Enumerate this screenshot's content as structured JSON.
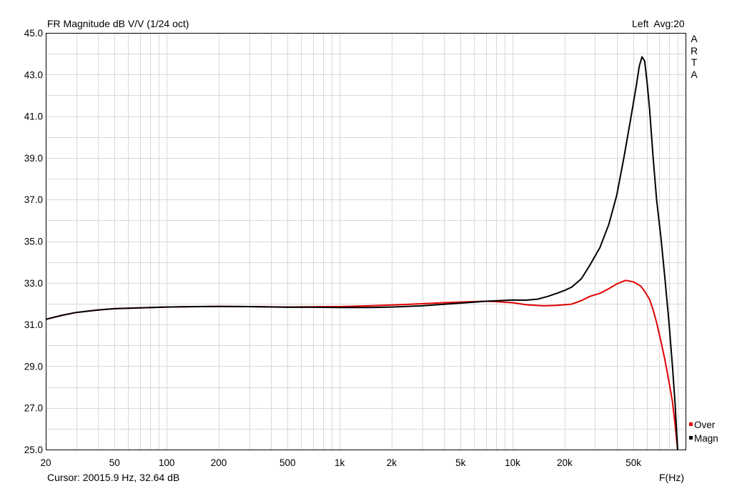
{
  "header": {
    "title": "FR Magnitude dB V/V (1/24 oct)",
    "right": "Left  Avg:20"
  },
  "brand": [
    "A",
    "R",
    "T",
    "A"
  ],
  "footer": {
    "cursor": "Cursor: 20015.9 Hz, 32.64 dB",
    "xunit": "F(Hz)"
  },
  "colors": {
    "grid": "#d8d8d8",
    "frame": "#000000",
    "magn": "#000000",
    "over": "#e00000"
  },
  "chart_data": {
    "type": "line",
    "title": "FR Magnitude dB V/V (1/24 oct)",
    "xscale": "log",
    "xlim": [
      20,
      100000
    ],
    "ylim": [
      25,
      45
    ],
    "xticks": [
      20,
      50,
      100,
      200,
      500,
      1000,
      2000,
      5000,
      10000,
      20000,
      50000
    ],
    "xtick_labels": [
      "20",
      "50",
      "100",
      "200",
      "500",
      "1k",
      "2k",
      "5k",
      "10k",
      "20k",
      "50k"
    ],
    "yticks": [
      25,
      27,
      29,
      31,
      33,
      35,
      37,
      39,
      41,
      43,
      45
    ],
    "ytick_labels": [
      "25.0",
      "27.0",
      "29.0",
      "31.0",
      "33.0",
      "35.0",
      "37.0",
      "39.0",
      "41.0",
      "43.0",
      "45.0"
    ],
    "xlabel": "F(Hz)",
    "legend_position": "bottom-right",
    "grid": true,
    "series": [
      {
        "name": "Over",
        "color": "#e00000",
        "points": [
          [
            20,
            31.25
          ],
          [
            25,
            31.45
          ],
          [
            30,
            31.58
          ],
          [
            40,
            31.7
          ],
          [
            50,
            31.76
          ],
          [
            70,
            31.8
          ],
          [
            100,
            31.84
          ],
          [
            150,
            31.86
          ],
          [
            200,
            31.87
          ],
          [
            300,
            31.86
          ],
          [
            500,
            31.84
          ],
          [
            700,
            31.85
          ],
          [
            1000,
            31.86
          ],
          [
            1500,
            31.9
          ],
          [
            2000,
            31.94
          ],
          [
            3000,
            32.0
          ],
          [
            4000,
            32.05
          ],
          [
            5000,
            32.08
          ],
          [
            7000,
            32.12
          ],
          [
            8000,
            32.1
          ],
          [
            10000,
            32.05
          ],
          [
            12000,
            31.95
          ],
          [
            15000,
            31.9
          ],
          [
            18000,
            31.92
          ],
          [
            20000,
            31.95
          ],
          [
            22000,
            31.98
          ],
          [
            25000,
            32.15
          ],
          [
            28000,
            32.35
          ],
          [
            32000,
            32.5
          ],
          [
            36000,
            32.72
          ],
          [
            40000,
            32.95
          ],
          [
            45000,
            33.12
          ],
          [
            50000,
            33.05
          ],
          [
            55000,
            32.85
          ],
          [
            58000,
            32.6
          ],
          [
            62000,
            32.2
          ],
          [
            65000,
            31.7
          ],
          [
            68000,
            31.1
          ],
          [
            72000,
            30.2
          ],
          [
            76000,
            29.3
          ],
          [
            80000,
            28.3
          ],
          [
            84000,
            27.3
          ],
          [
            87000,
            26.2
          ],
          [
            90000,
            25.0
          ]
        ]
      },
      {
        "name": "Magn",
        "color": "#000000",
        "points": [
          [
            20,
            31.25
          ],
          [
            25,
            31.45
          ],
          [
            30,
            31.58
          ],
          [
            40,
            31.7
          ],
          [
            50,
            31.76
          ],
          [
            70,
            31.8
          ],
          [
            100,
            31.84
          ],
          [
            150,
            31.86
          ],
          [
            200,
            31.87
          ],
          [
            300,
            31.86
          ],
          [
            500,
            31.83
          ],
          [
            700,
            31.83
          ],
          [
            1000,
            31.82
          ],
          [
            1500,
            31.82
          ],
          [
            2000,
            31.84
          ],
          [
            3000,
            31.9
          ],
          [
            4000,
            31.97
          ],
          [
            5000,
            32.03
          ],
          [
            7000,
            32.12
          ],
          [
            10000,
            32.18
          ],
          [
            12000,
            32.17
          ],
          [
            14000,
            32.22
          ],
          [
            16000,
            32.35
          ],
          [
            18000,
            32.5
          ],
          [
            20000,
            32.64
          ],
          [
            22000,
            32.8
          ],
          [
            25000,
            33.2
          ],
          [
            28000,
            33.85
          ],
          [
            32000,
            34.7
          ],
          [
            36000,
            35.8
          ],
          [
            40000,
            37.2
          ],
          [
            44000,
            39.0
          ],
          [
            48000,
            40.8
          ],
          [
            52000,
            42.5
          ],
          [
            54000,
            43.4
          ],
          [
            56000,
            43.85
          ],
          [
            58000,
            43.65
          ],
          [
            60000,
            42.6
          ],
          [
            62000,
            41.3
          ],
          [
            65000,
            39.0
          ],
          [
            68000,
            37.0
          ],
          [
            72000,
            35.2
          ],
          [
            76000,
            33.2
          ],
          [
            80000,
            31.2
          ],
          [
            84000,
            29.0
          ],
          [
            87000,
            27.2
          ],
          [
            90000,
            25.0
          ]
        ]
      }
    ]
  }
}
